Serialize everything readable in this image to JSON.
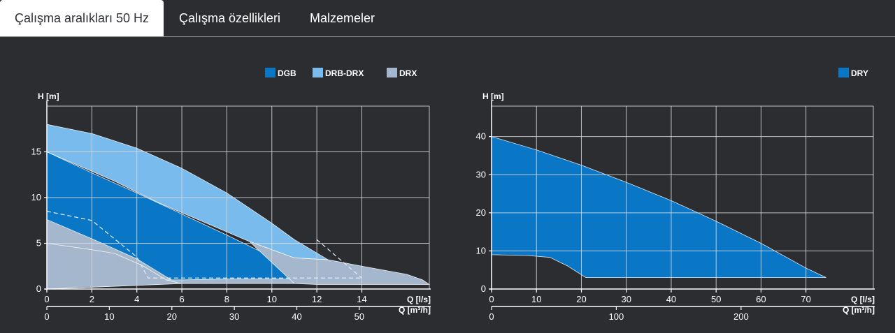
{
  "tabs": [
    {
      "label": "Çalışma aralıkları 50 Hz",
      "active": true
    },
    {
      "label": "Çalışma özellikleri",
      "active": false
    },
    {
      "label": "Malzemeler",
      "active": false
    }
  ],
  "colors": {
    "background": "#2b2d31",
    "grid": "#d8dadd",
    "text": "#ffffff",
    "DGB": "#0a77c6",
    "DRB-DRX": "#79bbed",
    "DRX": "#a4b7cc",
    "DRY": "#0a77c6"
  },
  "chart_data": [
    {
      "type": "area",
      "ylabel": "H [m]",
      "xlabel": "Q [l/s]",
      "x2label": "Q [m³/h]",
      "xlim": [
        0,
        17
      ],
      "ylim": [
        0,
        20
      ],
      "xticks": [
        0,
        2,
        4,
        6,
        8,
        10,
        12,
        14
      ],
      "yticks": [
        0,
        5,
        10,
        15
      ],
      "x2ticks": [
        0,
        10,
        20,
        30,
        40,
        50
      ],
      "legend": [
        {
          "label": "DGB",
          "color": "#0a77c6"
        },
        {
          "label": "DRB-DRX",
          "color": "#79bbed"
        },
        {
          "label": "DRX",
          "color": "#a4b7cc"
        }
      ],
      "series": [
        {
          "name": "DRB-DRX",
          "color": "#79bbed",
          "upper": [
            [
              0,
              18
            ],
            [
              2,
              17
            ],
            [
              4,
              15.4
            ],
            [
              6,
              13.2
            ],
            [
              8,
              10.5
            ],
            [
              10,
              7.2
            ],
            [
              11,
              5.4
            ],
            [
              12.5,
              3.2
            ]
          ],
          "lower": [
            [
              12.5,
              3.2
            ],
            [
              11,
              3.4
            ],
            [
              9,
              5.2
            ],
            [
              7,
              7.3
            ],
            [
              5,
              9.4
            ],
            [
              3,
              11.8
            ],
            [
              0,
              15
            ]
          ]
        },
        {
          "name": "DGB",
          "color": "#0a77c6",
          "upper": [
            [
              0,
              15
            ],
            [
              2,
              12.7
            ],
            [
              4,
              10.5
            ],
            [
              6,
              8.2
            ],
            [
              8,
              5.9
            ],
            [
              10,
              3.5
            ],
            [
              11.7,
              0.9
            ]
          ],
          "lower": [
            [
              11.7,
              0.6
            ],
            [
              6,
              0.6
            ],
            [
              5.3,
              1.0
            ],
            [
              4.3,
              2.5
            ],
            [
              3,
              3.9
            ],
            [
              2,
              4.3
            ],
            [
              0,
              5
            ]
          ]
        },
        {
          "name": "DRX",
          "color": "#a4b7cc",
          "upper": [
            [
              0,
              7.6
            ],
            [
              2,
              5.5
            ],
            [
              4,
              3.3
            ],
            [
              5.8,
              0.6
            ]
          ],
          "lower": [
            [
              5.8,
              0.6
            ],
            [
              0,
              0
            ]
          ]
        },
        {
          "name": "DRX",
          "color": "#a4b7cc",
          "upper": [
            [
              0,
              5
            ],
            [
              2,
              4.3
            ],
            [
              3,
              3.9
            ],
            [
              4.3,
              2.5
            ],
            [
              5.3,
              1.0
            ],
            [
              6,
              0.6
            ]
          ],
          "lower": [
            [
              6,
              0.6
            ],
            [
              0,
              0
            ]
          ]
        },
        {
          "name": "DRX",
          "color": "#a4b7cc",
          "upper": [
            [
              5.3,
              1.0
            ],
            [
              6,
              1.0
            ],
            [
              8,
              1.1
            ],
            [
              11,
              1.1
            ],
            [
              11.7,
              0.9
            ]
          ],
          "lower": [
            [
              11.7,
              0.6
            ],
            [
              6,
              0.6
            ],
            [
              5.3,
              1.0
            ]
          ]
        },
        {
          "name": "DRX",
          "color": "#a4b7cc",
          "upper": [
            [
              12.5,
              3.2
            ],
            [
              14,
              2.5
            ],
            [
              16,
              1.6
            ],
            [
              16.7,
              1.0
            ],
            [
              17,
              0.5
            ]
          ],
          "lower": [
            [
              17,
              0.5
            ],
            [
              12,
              0.5
            ],
            [
              11,
              0.6
            ],
            [
              9,
              5.2
            ],
            [
              11,
              3.4
            ],
            [
              12.5,
              3.2
            ]
          ]
        }
      ],
      "dashed_curve": [
        [
          0,
          8.5
        ],
        [
          2,
          7.5
        ],
        [
          3,
          5.5
        ],
        [
          4,
          3.5
        ],
        [
          4.5,
          1.2
        ],
        [
          13,
          1.2
        ],
        [
          14,
          1.2
        ]
      ],
      "dashed_curve_top": [
        [
          12,
          5.4
        ],
        [
          13,
          3.3
        ],
        [
          14,
          1.2
        ]
      ]
    },
    {
      "type": "area",
      "ylabel": "H [m]",
      "xlabel": "Q [l/s]",
      "x2label": "Q [m³/h]",
      "xlim": [
        0,
        85
      ],
      "ylim": [
        0,
        48
      ],
      "xticks": [
        0,
        10,
        20,
        30,
        40,
        50,
        60,
        70
      ],
      "yticks": [
        0,
        10,
        20,
        30,
        40
      ],
      "x2ticks": [
        0,
        100,
        200
      ],
      "legend": [
        {
          "label": "DRY",
          "color": "#0a77c6"
        }
      ],
      "series": [
        {
          "name": "DRY",
          "color": "#0a77c6",
          "upper": [
            [
              0,
              40
            ],
            [
              10,
              36.5
            ],
            [
              20,
              32.5
            ],
            [
              30,
              28
            ],
            [
              40,
              23.2
            ],
            [
              50,
              17.8
            ],
            [
              60,
              12
            ],
            [
              70,
              5.5
            ],
            [
              74.5,
              3
            ]
          ],
          "lower": [
            [
              74.5,
              3
            ],
            [
              21,
              3
            ],
            [
              17,
              6
            ],
            [
              13,
              8.3
            ],
            [
              8,
              8.8
            ],
            [
              0,
              9
            ]
          ]
        }
      ]
    }
  ]
}
